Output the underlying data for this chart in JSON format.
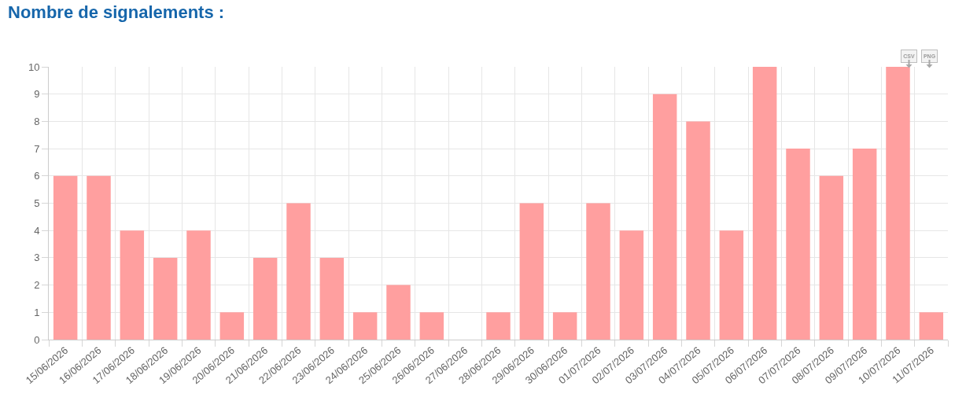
{
  "chart_data": {
    "type": "bar",
    "title": "Nombre de signalements :",
    "categories": [
      "15/06/2026",
      "16/06/2026",
      "17/06/2026",
      "18/06/2026",
      "19/06/2026",
      "20/06/2026",
      "21/06/2026",
      "22/06/2026",
      "23/06/2026",
      "24/06/2026",
      "25/06/2026",
      "26/06/2026",
      "27/06/2026",
      "28/06/2026",
      "29/06/2026",
      "30/06/2026",
      "01/07/2026",
      "02/07/2026",
      "03/07/2026",
      "04/07/2026",
      "05/07/2026",
      "06/07/2026",
      "07/07/2026",
      "08/07/2026",
      "09/07/2026",
      "10/07/2026",
      "11/07/2026"
    ],
    "values": [
      6,
      6,
      4,
      3,
      4,
      1,
      3,
      5,
      3,
      1,
      2,
      1,
      0,
      1,
      5,
      1,
      5,
      4,
      9,
      8,
      4,
      10,
      7,
      6,
      7,
      10,
      1
    ],
    "color": "#ff9f9f",
    "ylim": [
      0,
      10
    ],
    "yticks": [
      0,
      1,
      2,
      3,
      4,
      5,
      6,
      7,
      8,
      9,
      10
    ],
    "grid": true,
    "annotations": [
      "CSV",
      "PNG"
    ]
  }
}
